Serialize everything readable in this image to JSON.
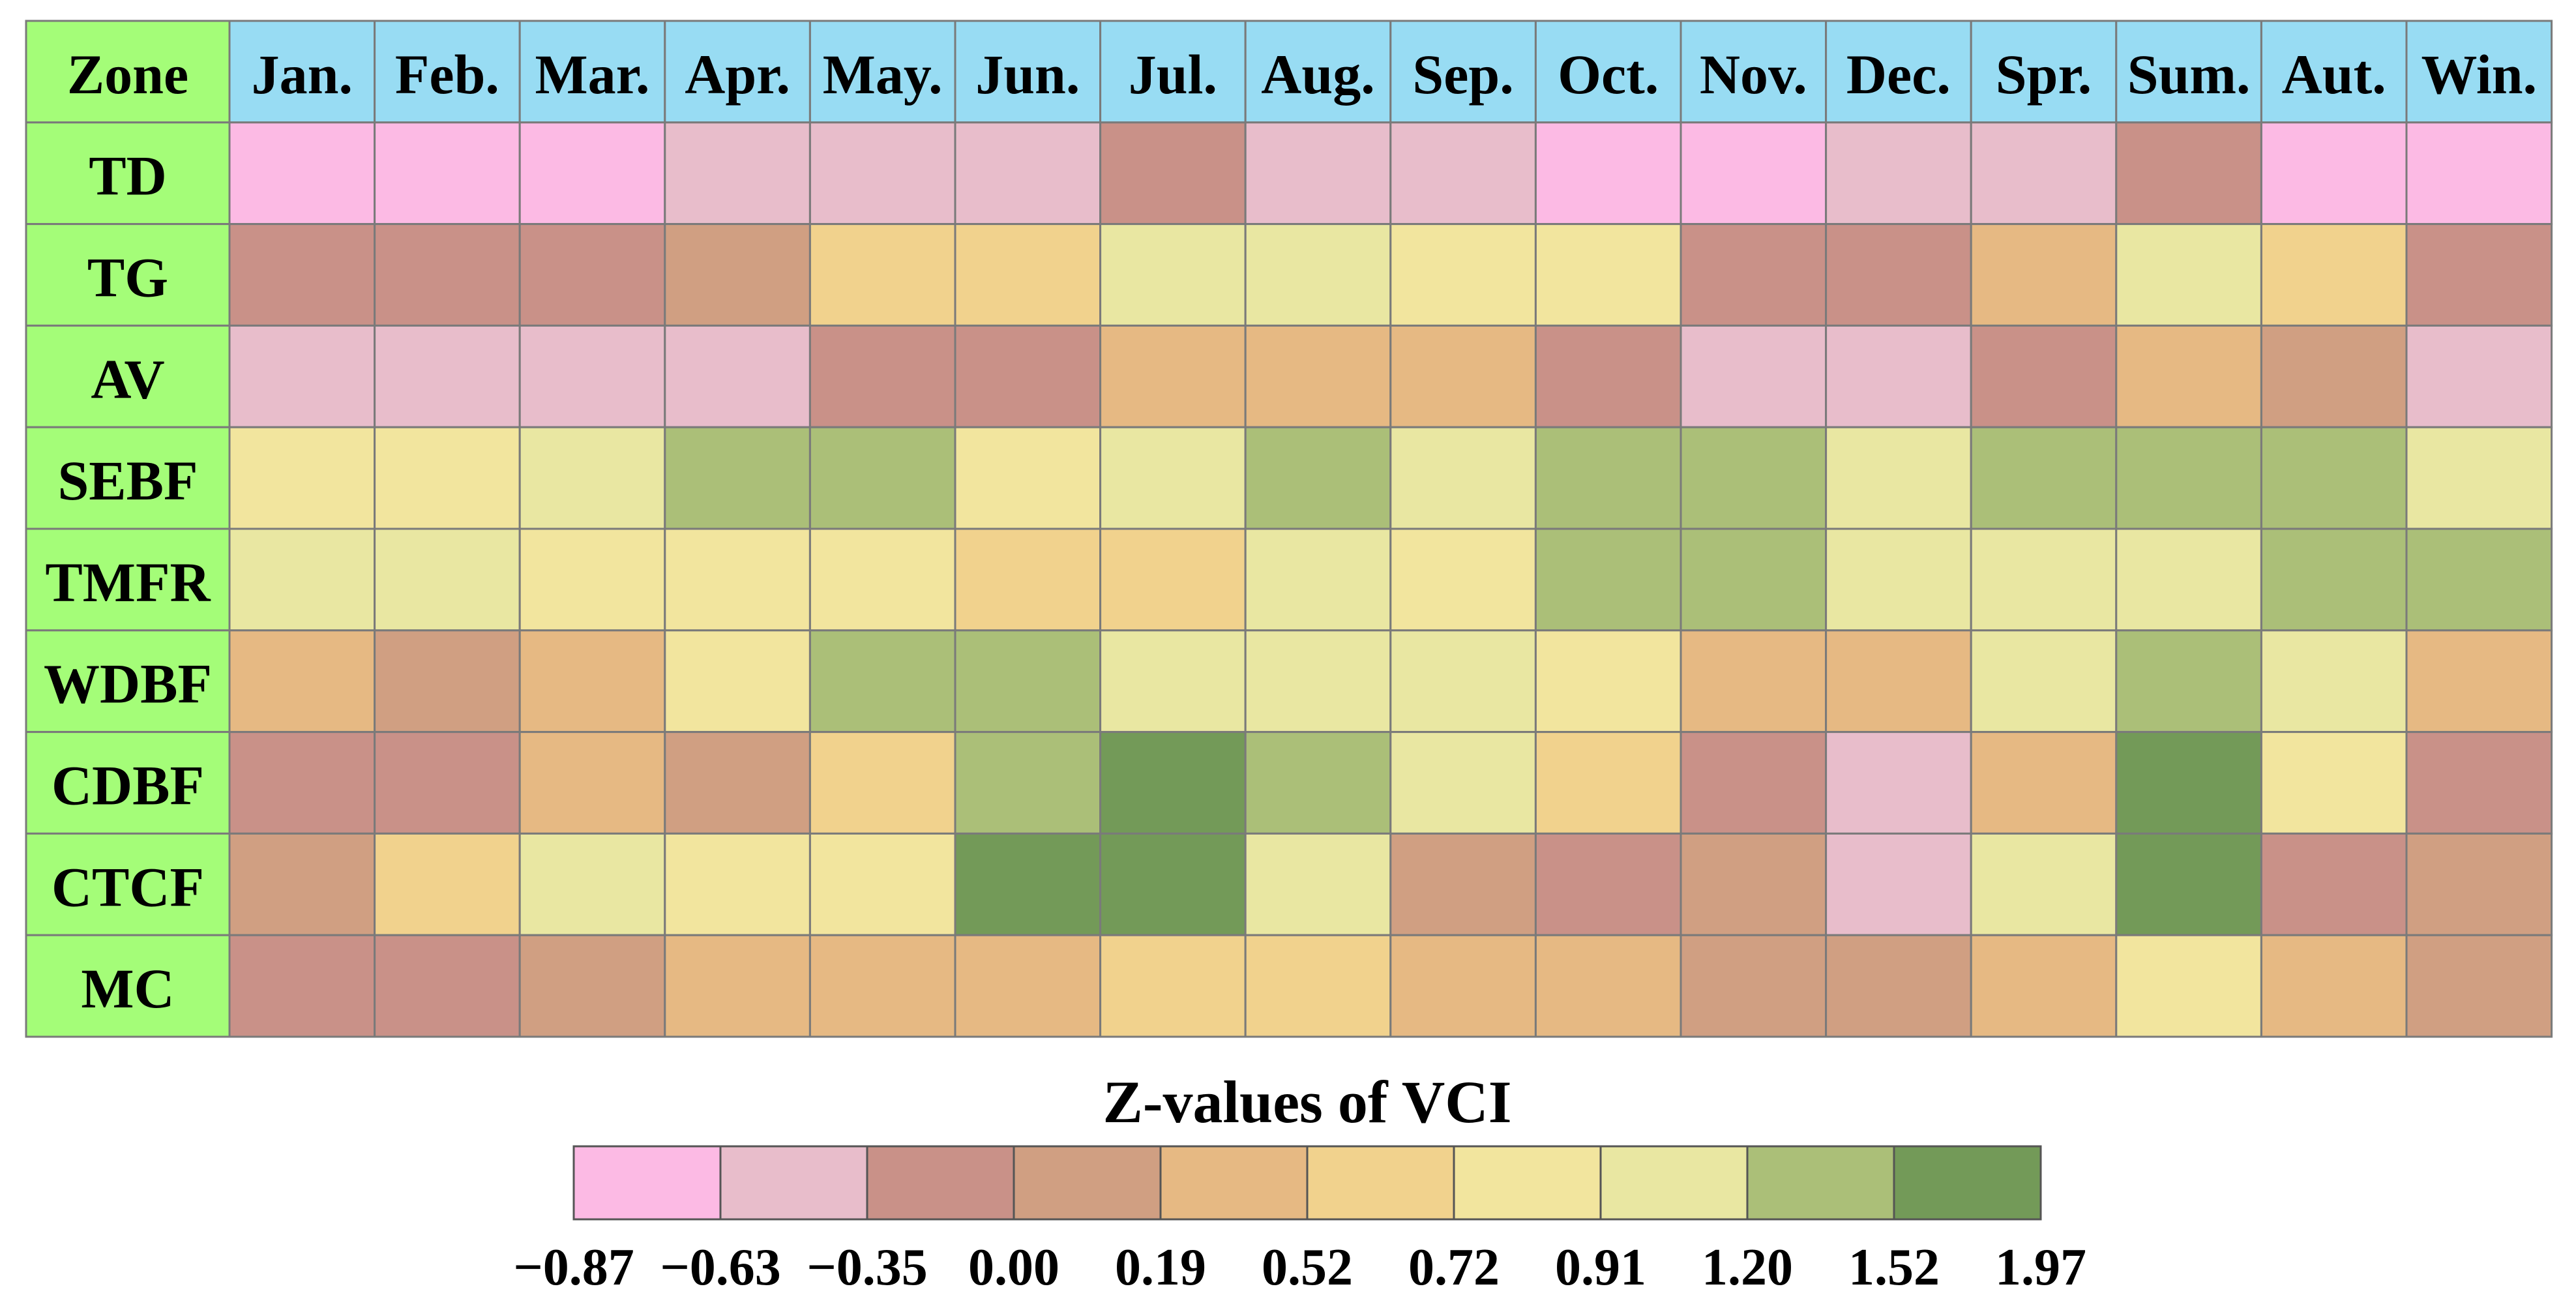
{
  "chart_data": {
    "type": "heatmap",
    "title": "",
    "corner_label": "Zone",
    "columns": [
      "Jan.",
      "Feb.",
      "Mar.",
      "Apr.",
      "May.",
      "Jun.",
      "Jul.",
      "Aug.",
      "Sep.",
      "Oct.",
      "Nov.",
      "Dec.",
      "Spr.",
      "Sum.",
      "Aut.",
      "Win."
    ],
    "rows": [
      "TD",
      "TG",
      "AV",
      "SEBF",
      "TMFR",
      "WDBF",
      "CDBF",
      "CTCF",
      "MC"
    ],
    "class_index_values": [
      [
        0,
        0,
        0,
        1,
        1,
        1,
        2,
        1,
        1,
        0,
        0,
        1,
        1,
        2,
        0,
        0
      ],
      [
        2,
        2,
        2,
        3,
        5,
        5,
        7,
        7,
        6,
        6,
        2,
        2,
        4,
        7,
        5,
        2
      ],
      [
        1,
        1,
        1,
        1,
        2,
        2,
        4,
        4,
        4,
        2,
        1,
        1,
        2,
        4,
        3,
        1
      ],
      [
        6,
        6,
        7,
        8,
        8,
        6,
        7,
        8,
        7,
        8,
        8,
        7,
        8,
        8,
        8,
        7
      ],
      [
        7,
        7,
        6,
        6,
        6,
        5,
        5,
        7,
        6,
        8,
        8,
        7,
        7,
        7,
        8,
        8
      ],
      [
        4,
        3,
        4,
        6,
        8,
        8,
        7,
        7,
        7,
        6,
        4,
        4,
        7,
        8,
        7,
        4
      ],
      [
        2,
        2,
        4,
        3,
        5,
        8,
        9,
        8,
        7,
        5,
        2,
        1,
        4,
        9,
        6,
        2
      ],
      [
        3,
        5,
        7,
        6,
        6,
        9,
        9,
        7,
        3,
        2,
        3,
        1,
        7,
        9,
        2,
        3
      ],
      [
        2,
        2,
        3,
        4,
        4,
        4,
        5,
        5,
        4,
        4,
        3,
        3,
        4,
        6,
        4,
        3
      ]
    ],
    "colorbar": {
      "title": "Z-values of VCI",
      "ticks": [
        "−0.87",
        "−0.63",
        "−0.35",
        "0.00",
        "0.19",
        "0.52",
        "0.72",
        "0.91",
        "1.20",
        "1.52",
        "1.97"
      ],
      "colors": [
        "#fcbae4",
        "#e8bdcb",
        "#c99188",
        "#d09f82",
        "#e6b983",
        "#f1d28d",
        "#f2e59e",
        "#e9e7a2",
        "#abbf78",
        "#739a58"
      ]
    },
    "header_color": "#98dcf3",
    "zone_color": "#a4fd78"
  }
}
